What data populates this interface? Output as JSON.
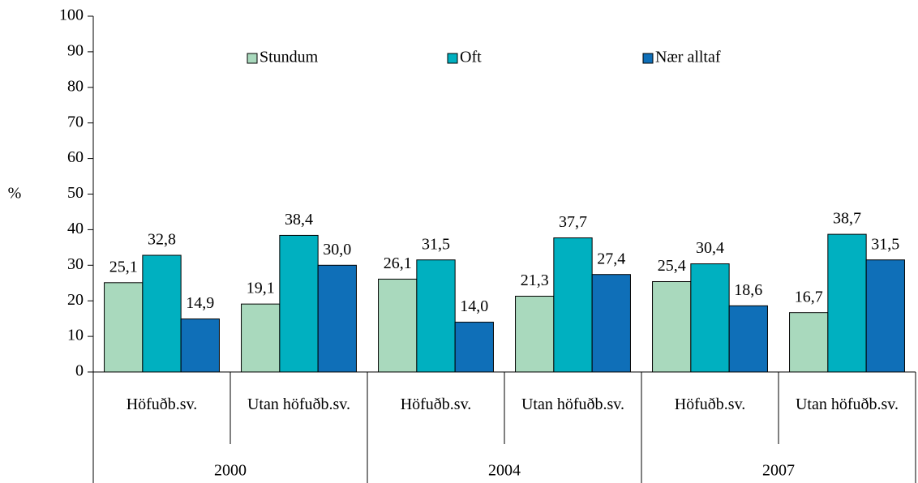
{
  "chart_data": {
    "type": "bar",
    "ylabel": "%",
    "categories": [
      "Höfuðb.sv.",
      "Utan höfuðb.sv.",
      "Höfuðb.sv.",
      "Utan höfuðb.sv.",
      "Höfuðb.sv.",
      "Utan höfuðb.sv."
    ],
    "category_groups": [
      "2000",
      "2004",
      "2007"
    ],
    "series": [
      {
        "name": "Stundum",
        "color": "#a9d9bd",
        "values": [
          25.1,
          19.1,
          26.1,
          21.3,
          25.4,
          16.7
        ],
        "value_labels": [
          "25,1",
          "19,1",
          "26,1",
          "21,3",
          "25,4",
          "16,7"
        ]
      },
      {
        "name": "Oft",
        "color": "#00b0c0",
        "values": [
          32.8,
          38.4,
          31.5,
          37.7,
          30.4,
          38.7
        ],
        "value_labels": [
          "32,8",
          "38,4",
          "31,5",
          "37,7",
          "30,4",
          "38,7"
        ]
      },
      {
        "name": "Nær alltaf",
        "color": "#0f6fb8",
        "values": [
          14.9,
          30.0,
          14.0,
          27.4,
          18.6,
          31.5
        ],
        "value_labels": [
          "14,9",
          "30,0",
          "14,0",
          "27,4",
          "18,6",
          "31,5"
        ]
      }
    ],
    "ylim": [
      0,
      100
    ],
    "yticks": [
      0,
      10,
      20,
      30,
      40,
      50,
      60,
      70,
      80,
      90,
      100
    ],
    "grid": false,
    "legend": "top"
  }
}
